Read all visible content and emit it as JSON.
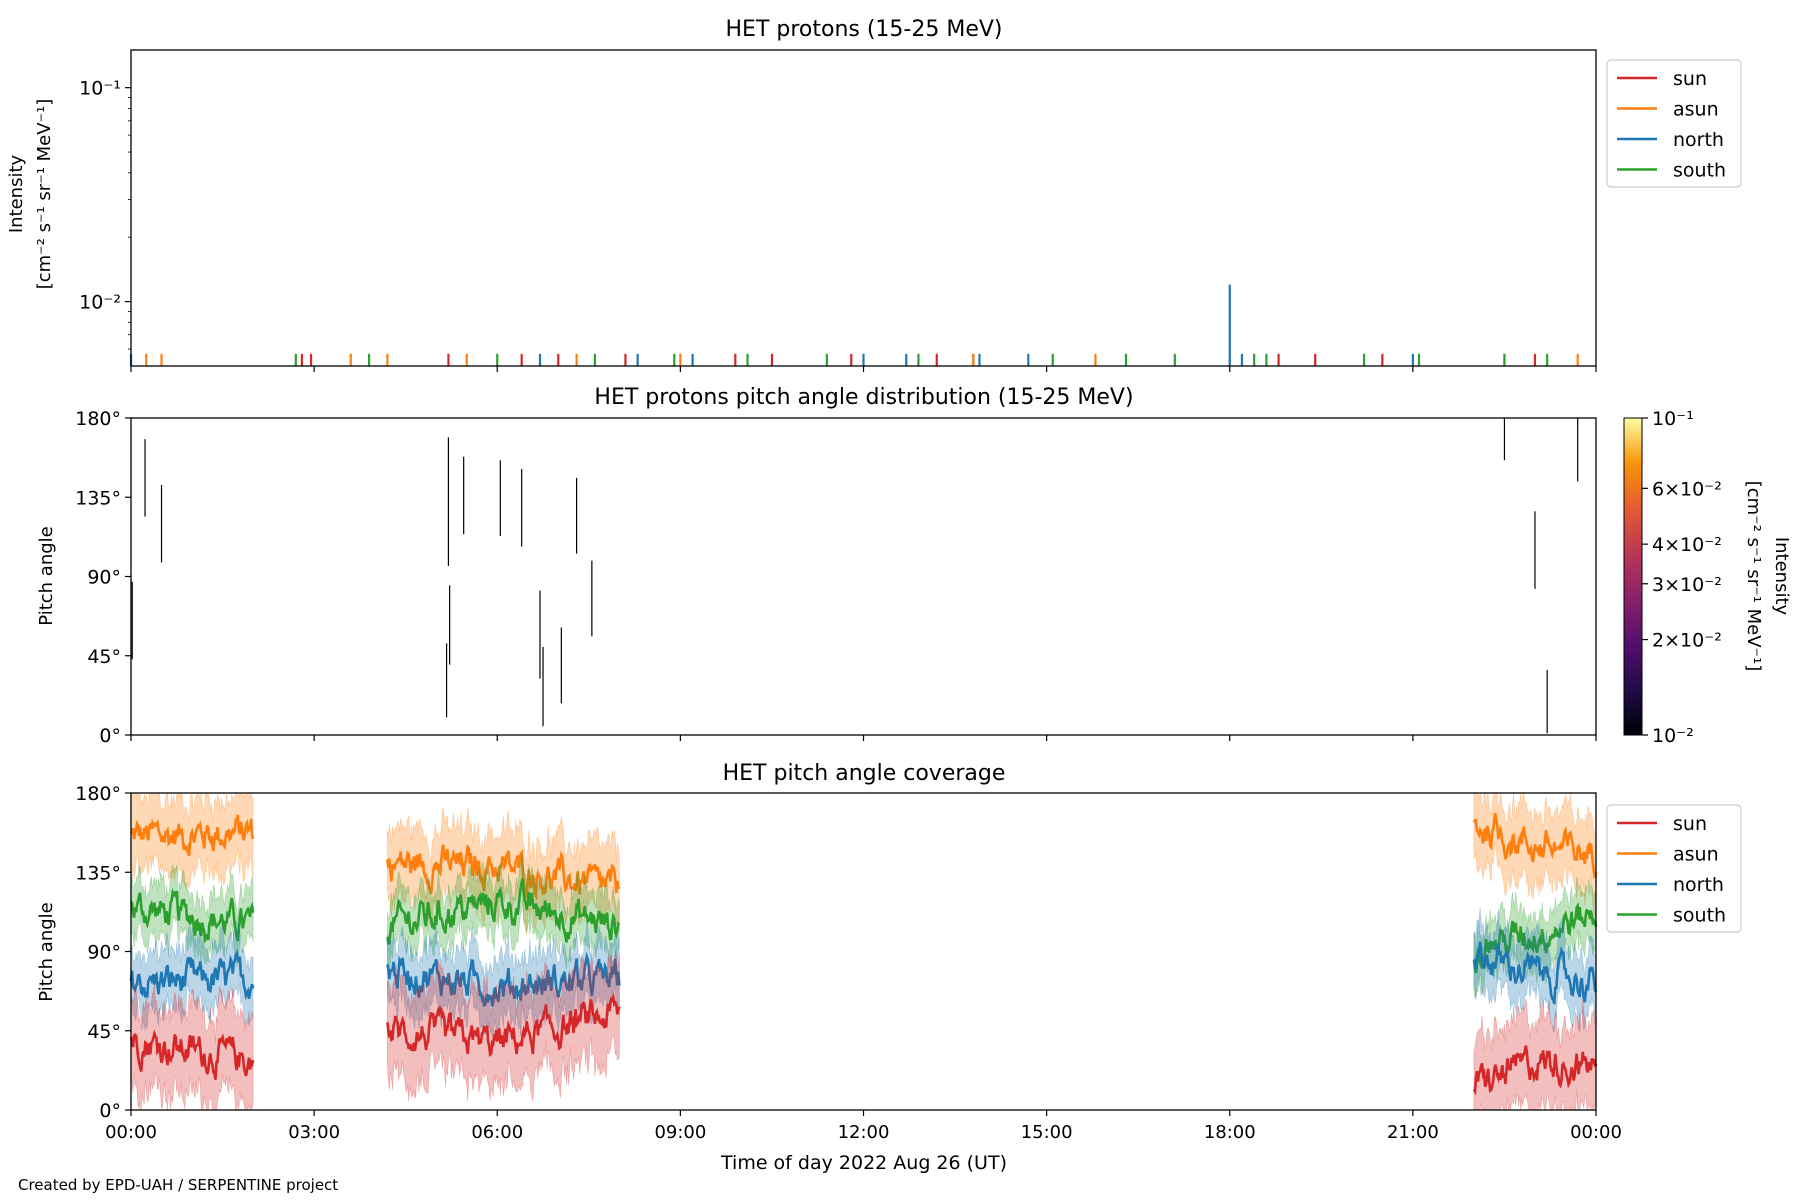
{
  "footer": "Created by EPD-UAH / SERPENTINE project",
  "xlabel": "Time of day 2022 Aug 26 (UT)",
  "x_tick_labels": [
    "00:00",
    "03:00",
    "06:00",
    "09:00",
    "12:00",
    "15:00",
    "18:00",
    "21:00",
    "00:00"
  ],
  "x_tick_hours": [
    0,
    3,
    6,
    9,
    12,
    15,
    18,
    21,
    24
  ],
  "xlim_hours": [
    0,
    24
  ],
  "colors": {
    "sun": "#d62728",
    "asun": "#ff7f0e",
    "north": "#1f77b4",
    "south": "#2ca02c"
  },
  "legend": [
    {
      "name": "sun",
      "color": "#d62728"
    },
    {
      "name": "asun",
      "color": "#ff7f0e"
    },
    {
      "name": "north",
      "color": "#1f77b4"
    },
    {
      "name": "south",
      "color": "#2ca02c"
    }
  ],
  "chart_data": [
    {
      "type": "line",
      "title": "HET protons (15-25 MeV)",
      "ylabel_line1": "Intensity",
      "ylabel_line2": "[cm⁻² s⁻¹ sr⁻¹ MeV⁻¹]",
      "yscale": "log",
      "ylim": [
        0.005,
        0.15
      ],
      "y_ticks": [
        {
          "value": 0.1,
          "label": "10⁻¹"
        },
        {
          "value": 0.01,
          "label": "10⁻²"
        }
      ],
      "legend_position": "outside upper right",
      "series": [
        {
          "name": "sun",
          "spikes": [
            [
              2.8,
              0.0057
            ],
            [
              2.95,
              0.0057
            ],
            [
              5.2,
              0.0057
            ],
            [
              6.4,
              0.0057
            ],
            [
              7.0,
              0.0057
            ],
            [
              8.1,
              0.0057
            ],
            [
              9.9,
              0.0057
            ],
            [
              10.5,
              0.0057
            ],
            [
              11.8,
              0.0057
            ],
            [
              13.2,
              0.0057
            ],
            [
              13.8,
              0.0057
            ],
            [
              18.8,
              0.0057
            ],
            [
              19.4,
              0.0057
            ],
            [
              20.5,
              0.0057
            ],
            [
              23.0,
              0.0057
            ]
          ]
        },
        {
          "name": "asun",
          "spikes": [
            [
              0.25,
              0.0057
            ],
            [
              0.5,
              0.0057
            ],
            [
              3.6,
              0.0057
            ],
            [
              4.2,
              0.0057
            ],
            [
              5.5,
              0.0057
            ],
            [
              7.3,
              0.0057
            ],
            [
              9.0,
              0.0057
            ],
            [
              13.8,
              0.0057
            ],
            [
              15.8,
              0.0057
            ],
            [
              22.5,
              0.0057
            ],
            [
              23.7,
              0.0057
            ]
          ]
        },
        {
          "name": "north",
          "spikes": [
            [
              0.0,
              0.0057
            ],
            [
              6.7,
              0.0057
            ],
            [
              8.3,
              0.0057
            ],
            [
              9.2,
              0.0057
            ],
            [
              12.0,
              0.0057
            ],
            [
              12.7,
              0.0057
            ],
            [
              13.9,
              0.0057
            ],
            [
              14.7,
              0.0057
            ],
            [
              18.0,
              0.012
            ],
            [
              18.2,
              0.0057
            ],
            [
              21.0,
              0.0057
            ]
          ]
        },
        {
          "name": "south",
          "spikes": [
            [
              2.7,
              0.0057
            ],
            [
              3.9,
              0.0057
            ],
            [
              6.0,
              0.0057
            ],
            [
              7.6,
              0.0057
            ],
            [
              8.9,
              0.0057
            ],
            [
              10.1,
              0.0057
            ],
            [
              11.4,
              0.0057
            ],
            [
              12.9,
              0.0057
            ],
            [
              15.1,
              0.0057
            ],
            [
              16.3,
              0.0057
            ],
            [
              17.1,
              0.0057
            ],
            [
              18.4,
              0.0057
            ],
            [
              18.6,
              0.0057
            ],
            [
              20.2,
              0.0057
            ],
            [
              21.1,
              0.0057
            ],
            [
              22.5,
              0.0057
            ],
            [
              23.2,
              0.0057
            ]
          ]
        }
      ]
    },
    {
      "type": "heatmap",
      "title": "HET protons pitch angle distribution (15-25 MeV)",
      "ylabel": "Pitch angle",
      "ylim": [
        0,
        180
      ],
      "y_ticks": [
        {
          "value": 0,
          "label": "0°"
        },
        {
          "value": 45,
          "label": "45°"
        },
        {
          "value": 90,
          "label": "90°"
        },
        {
          "value": 135,
          "label": "135°"
        },
        {
          "value": 180,
          "label": "180°"
        }
      ],
      "colormap": "inferno",
      "colorbar": {
        "label_line1": "Intensity",
        "label_line2": "[cm⁻² s⁻¹ sr⁻¹ MeV⁻¹]",
        "scale": "log",
        "range": [
          0.01,
          0.1
        ],
        "ticks": [
          {
            "value": 0.1,
            "label": "10⁻¹"
          },
          {
            "value": 0.06,
            "label": "6×10⁻²"
          },
          {
            "value": 0.04,
            "label": "4×10⁻²"
          },
          {
            "value": 0.03,
            "label": "3×10⁻²"
          },
          {
            "value": 0.02,
            "label": "2×10⁻²"
          },
          {
            "value": 0.01,
            "label": "10⁻²"
          }
        ]
      },
      "segments": [
        {
          "t": 0.02,
          "from": 43,
          "to": 87
        },
        {
          "t": 0.23,
          "from": 124,
          "to": 168
        },
        {
          "t": 0.5,
          "from": 98,
          "to": 142
        },
        {
          "t": 5.17,
          "from": 10,
          "to": 52
        },
        {
          "t": 5.2,
          "from": 96,
          "to": 169
        },
        {
          "t": 5.22,
          "from": 40,
          "to": 85
        },
        {
          "t": 5.45,
          "from": 114,
          "to": 158
        },
        {
          "t": 6.05,
          "from": 113,
          "to": 156
        },
        {
          "t": 6.4,
          "from": 107,
          "to": 151
        },
        {
          "t": 6.7,
          "from": 32,
          "to": 82
        },
        {
          "t": 6.75,
          "from": 5,
          "to": 50
        },
        {
          "t": 7.05,
          "from": 18,
          "to": 61
        },
        {
          "t": 7.3,
          "from": 103,
          "to": 146
        },
        {
          "t": 7.55,
          "from": 56,
          "to": 99
        },
        {
          "t": 22.5,
          "from": 156,
          "to": 180
        },
        {
          "t": 23.0,
          "from": 83,
          "to": 127
        },
        {
          "t": 23.2,
          "from": 1,
          "to": 37
        },
        {
          "t": 23.7,
          "from": 144,
          "to": 180
        }
      ]
    },
    {
      "type": "area",
      "title": "HET pitch angle coverage",
      "ylabel": "Pitch angle",
      "ylim": [
        0,
        180
      ],
      "y_ticks": [
        {
          "value": 0,
          "label": "0°"
        },
        {
          "value": 45,
          "label": "45°"
        },
        {
          "value": 90,
          "label": "90°"
        },
        {
          "value": 135,
          "label": "135°"
        },
        {
          "value": 180,
          "label": "180°"
        }
      ],
      "legend_position": "outside upper right",
      "coverage_intervals": [
        [
          0,
          2
        ],
        [
          4.2,
          8
        ],
        [
          22,
          24
        ]
      ],
      "series": [
        {
          "name": "sun",
          "center": [
            [
              0,
              40
            ],
            [
              2,
              28
            ],
            [
              4.2,
              45
            ],
            [
              6,
              38
            ],
            [
              8,
              55
            ],
            [
              22,
              12
            ],
            [
              23,
              28
            ],
            [
              24,
              25
            ]
          ],
          "half_width": 25
        },
        {
          "name": "asun",
          "center": [
            [
              0,
              155
            ],
            [
              2,
              158
            ],
            [
              4.2,
              140
            ],
            [
              6,
              138
            ],
            [
              8,
              125
            ],
            [
              22,
              162
            ],
            [
              23,
              150
            ],
            [
              24,
              145
            ]
          ],
          "half_width": 20
        },
        {
          "name": "north",
          "center": [
            [
              0,
              72
            ],
            [
              2,
              75
            ],
            [
              4.2,
              80
            ],
            [
              6,
              70
            ],
            [
              8,
              75
            ],
            [
              22,
              88
            ],
            [
              23,
              78
            ],
            [
              24,
              72
            ]
          ],
          "half_width": 17
        },
        {
          "name": "south",
          "center": [
            [
              0,
              115
            ],
            [
              2,
              105
            ],
            [
              4.2,
              105
            ],
            [
              6,
              118
            ],
            [
              8,
              105
            ],
            [
              22,
              92
            ],
            [
              23,
              100
            ],
            [
              24,
              112
            ]
          ],
          "half_width": 15
        }
      ]
    }
  ]
}
